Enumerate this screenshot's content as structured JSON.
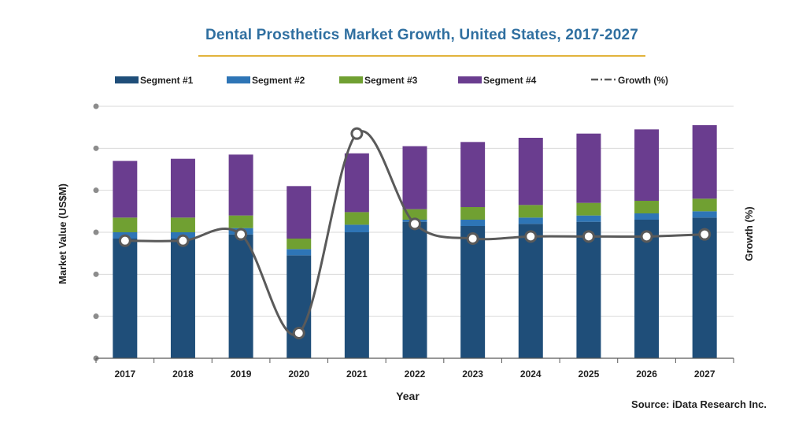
{
  "chart_data": {
    "type": "bar",
    "stacked": true,
    "title": "Dental Prosthetics Market Growth, United States, 2017-2027",
    "xlabel": "Year",
    "ylabel": "Market Value (US$M)",
    "y2label": "Growth (%)",
    "categories": [
      "2017",
      "2018",
      "2019",
      "2020",
      "2021",
      "2022",
      "2023",
      "2024",
      "2025",
      "2026",
      "2027"
    ],
    "ylim": [
      0,
      6
    ],
    "y_ticks": [
      0,
      1,
      2,
      3,
      4,
      5,
      6
    ],
    "y_tick_labels_shown": false,
    "grid": true,
    "legend_position": "top",
    "series": [
      {
        "name": "Segment #1",
        "color": "#1f4e79",
        "values": [
          2.85,
          2.85,
          2.95,
          2.45,
          3.0,
          3.25,
          3.15,
          3.2,
          3.25,
          3.3,
          3.35
        ]
      },
      {
        "name": "Segment #2",
        "color": "#2e75b6",
        "values": [
          0.15,
          0.15,
          0.15,
          0.15,
          0.18,
          0.05,
          0.15,
          0.15,
          0.15,
          0.15,
          0.15
        ]
      },
      {
        "name": "Segment #3",
        "color": "#70a032",
        "values": [
          0.35,
          0.35,
          0.3,
          0.25,
          0.3,
          0.25,
          0.3,
          0.3,
          0.3,
          0.3,
          0.3
        ]
      },
      {
        "name": "Segment #4",
        "color": "#6a3d8f",
        "values": [
          1.35,
          1.4,
          1.45,
          1.25,
          1.4,
          1.5,
          1.55,
          1.6,
          1.65,
          1.7,
          1.75
        ]
      }
    ],
    "growth": {
      "name": "Growth (%)",
      "color": "#5a5a5a",
      "ylim": [
        0,
        6
      ],
      "values": [
        2.8,
        2.8,
        2.95,
        0.6,
        5.35,
        3.2,
        2.85,
        2.9,
        2.9,
        2.9,
        2.95
      ]
    },
    "source": "Source: iData Research Inc."
  }
}
